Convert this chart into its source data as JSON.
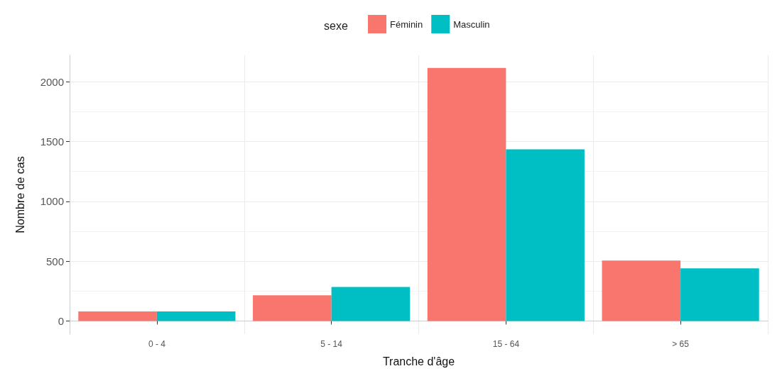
{
  "chart_data": {
    "type": "bar",
    "xlabel": "Tranche d'âge",
    "ylabel": "Nombre de cas",
    "legend_title": "sexe",
    "legend": "top",
    "categories": [
      "0 - 4",
      "5 - 14",
      "15 - 64",
      "> 65"
    ],
    "series": [
      {
        "name": "Féminin",
        "color": "#f8766d",
        "values": [
          80,
          215,
          2115,
          505
        ]
      },
      {
        "name": "Masculin",
        "color": "#00bfc4",
        "values": [
          80,
          285,
          1435,
          440
        ]
      }
    ],
    "ylim": [
      -110,
      2220
    ],
    "yticks": [
      0,
      500,
      1000,
      1500,
      2000
    ],
    "grid": true
  }
}
